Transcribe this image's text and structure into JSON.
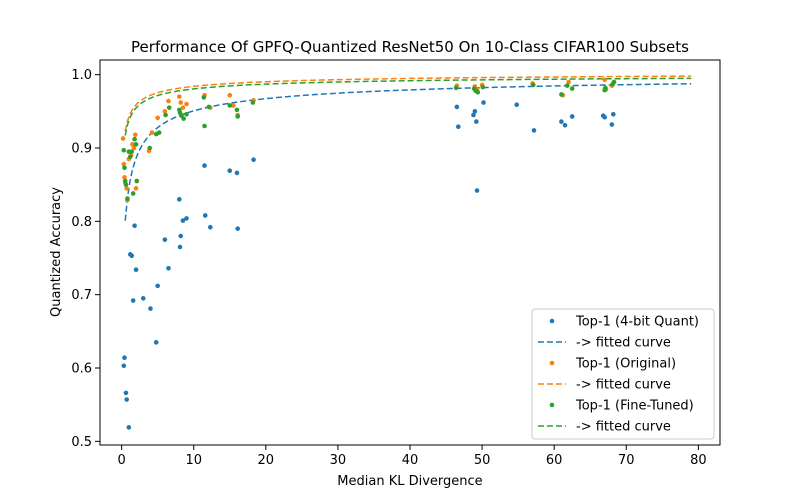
{
  "chart_data": {
    "type": "scatter",
    "title": "Performance Of GPFQ-Quantized ResNet50 On 10-Class CIFAR100 Subsets",
    "xlabel": "Median KL Divergence",
    "ylabel": "Quantized Accuracy",
    "xlim": [
      -3,
      83
    ],
    "ylim": [
      0.495,
      1.02
    ],
    "xticks": [
      0,
      10,
      20,
      30,
      40,
      50,
      60,
      70,
      80
    ],
    "yticks": [
      0.5,
      0.6,
      0.7,
      0.8,
      0.9,
      1.0
    ],
    "xtick_labels": [
      "0",
      "10",
      "20",
      "30",
      "40",
      "50",
      "60",
      "70",
      "80"
    ],
    "ytick_labels": [
      "0.5",
      "0.6",
      "0.7",
      "0.8",
      "0.9",
      "1.0"
    ],
    "grid": false,
    "legend_position": "lower-right",
    "series": [
      {
        "name": "Top-1 (4-bit Quant)",
        "color": "#1f77b4",
        "points": [
          [
            0.3,
            0.603
          ],
          [
            0.4,
            0.614
          ],
          [
            0.6,
            0.566
          ],
          [
            0.7,
            0.557
          ],
          [
            1.0,
            0.519
          ],
          [
            1.2,
            0.755
          ],
          [
            1.4,
            0.753
          ],
          [
            1.6,
            0.692
          ],
          [
            1.8,
            0.794
          ],
          [
            2.0,
            0.734
          ],
          [
            3.0,
            0.695
          ],
          [
            4.0,
            0.681
          ],
          [
            4.8,
            0.635
          ],
          [
            5.0,
            0.712
          ],
          [
            6.0,
            0.775
          ],
          [
            6.5,
            0.736
          ],
          [
            8.0,
            0.83
          ],
          [
            8.1,
            0.765
          ],
          [
            8.2,
            0.78
          ],
          [
            8.5,
            0.801
          ],
          [
            9.0,
            0.804
          ],
          [
            11.5,
            0.876
          ],
          [
            11.6,
            0.808
          ],
          [
            12.3,
            0.792
          ],
          [
            15.0,
            0.869
          ],
          [
            16.0,
            0.866
          ],
          [
            16.1,
            0.79
          ],
          [
            18.3,
            0.884
          ],
          [
            46.5,
            0.956
          ],
          [
            46.7,
            0.929
          ],
          [
            48.8,
            0.945
          ],
          [
            49.0,
            0.95
          ],
          [
            49.2,
            0.936
          ],
          [
            49.3,
            0.842
          ],
          [
            50.2,
            0.962
          ],
          [
            54.8,
            0.959
          ],
          [
            57.2,
            0.924
          ],
          [
            61.0,
            0.936
          ],
          [
            61.5,
            0.931
          ],
          [
            62.5,
            0.943
          ],
          [
            66.8,
            0.944
          ],
          [
            67.0,
            0.942
          ],
          [
            68.0,
            0.932
          ],
          [
            68.2,
            0.946
          ]
        ]
      },
      {
        "name": "Top-1 (Original)",
        "color": "#ff7f0e",
        "points": [
          [
            0.2,
            0.913
          ],
          [
            0.3,
            0.878
          ],
          [
            0.4,
            0.86
          ],
          [
            0.5,
            0.853
          ],
          [
            0.7,
            0.845
          ],
          [
            0.8,
            0.829
          ],
          [
            1.0,
            0.885
          ],
          [
            1.3,
            0.89
          ],
          [
            1.5,
            0.905
          ],
          [
            1.7,
            0.9
          ],
          [
            1.9,
            0.918
          ],
          [
            2.0,
            0.845
          ],
          [
            2.1,
            0.855
          ],
          [
            3.8,
            0.896
          ],
          [
            4.2,
            0.921
          ],
          [
            5.0,
            0.941
          ],
          [
            6.0,
            0.95
          ],
          [
            6.5,
            0.964
          ],
          [
            8.0,
            0.97
          ],
          [
            8.2,
            0.962
          ],
          [
            8.5,
            0.955
          ],
          [
            9.0,
            0.96
          ],
          [
            11.5,
            0.972
          ],
          [
            12.3,
            0.955
          ],
          [
            15.0,
            0.972
          ],
          [
            15.5,
            0.958
          ],
          [
            16.1,
            0.945
          ],
          [
            18.3,
            0.965
          ],
          [
            46.5,
            0.985
          ],
          [
            49.0,
            0.984
          ],
          [
            49.3,
            0.98
          ],
          [
            50.0,
            0.986
          ],
          [
            57.0,
            0.988
          ],
          [
            61.2,
            0.972
          ],
          [
            62.0,
            0.99
          ],
          [
            67.0,
            0.993
          ],
          [
            67.2,
            0.98
          ],
          [
            68.0,
            0.985
          ]
        ]
      },
      {
        "name": "Top-1 (Fine-Tuned)",
        "color": "#2ca02c",
        "points": [
          [
            0.3,
            0.897
          ],
          [
            0.4,
            0.873
          ],
          [
            0.5,
            0.855
          ],
          [
            0.6,
            0.85
          ],
          [
            0.8,
            0.831
          ],
          [
            1.0,
            0.895
          ],
          [
            1.2,
            0.888
          ],
          [
            1.4,
            0.895
          ],
          [
            1.6,
            0.838
          ],
          [
            1.8,
            0.912
          ],
          [
            2.0,
            0.905
          ],
          [
            2.1,
            0.855
          ],
          [
            3.9,
            0.9
          ],
          [
            4.8,
            0.919
          ],
          [
            5.2,
            0.921
          ],
          [
            6.1,
            0.945
          ],
          [
            6.6,
            0.955
          ],
          [
            8.0,
            0.952
          ],
          [
            8.1,
            0.948
          ],
          [
            8.3,
            0.944
          ],
          [
            8.6,
            0.94
          ],
          [
            9.0,
            0.946
          ],
          [
            11.4,
            0.969
          ],
          [
            11.5,
            0.93
          ],
          [
            12.1,
            0.956
          ],
          [
            15.0,
            0.958
          ],
          [
            16.0,
            0.952
          ],
          [
            16.1,
            0.943
          ],
          [
            18.2,
            0.962
          ],
          [
            46.4,
            0.982
          ],
          [
            48.9,
            0.981
          ],
          [
            49.1,
            0.978
          ],
          [
            49.4,
            0.976
          ],
          [
            50.1,
            0.983
          ],
          [
            57.1,
            0.986
          ],
          [
            61.0,
            0.973
          ],
          [
            61.8,
            0.985
          ],
          [
            62.5,
            0.981
          ],
          [
            67.0,
            0.979
          ],
          [
            67.1,
            0.982
          ],
          [
            68.1,
            0.987
          ],
          [
            68.3,
            0.99
          ]
        ]
      }
    ],
    "fitted_curves": [
      {
        "name": "-> fitted curve",
        "color": "#1f77b4",
        "a": 1.0085,
        "b": 0.1857,
        "c": 0.3,
        "x_range": [
          0.5,
          79
        ]
      },
      {
        "name": "-> fitted curve",
        "color": "#ff7f0e",
        "a": 1.0058,
        "b": 0.0694,
        "c": 0.2,
        "x_range": [
          0.5,
          79
        ]
      },
      {
        "name": "-> fitted curve",
        "color": "#2ca02c",
        "a": 1.0031,
        "b": 0.0719,
        "c": 0.2,
        "x_range": [
          0.5,
          79
        ]
      }
    ]
  }
}
